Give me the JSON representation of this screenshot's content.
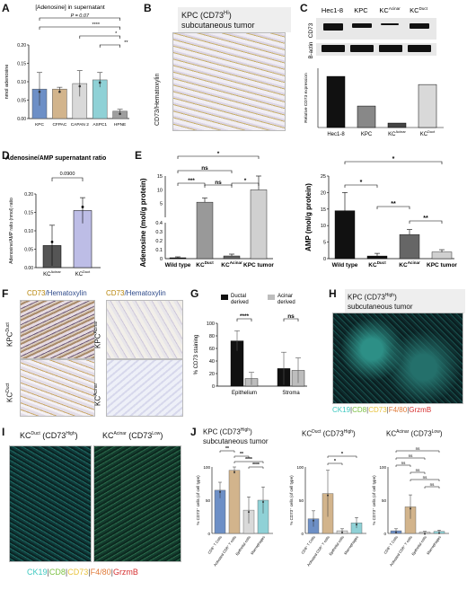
{
  "panels": {
    "A": {
      "label": "A",
      "title": "[Adenosine] in supernatant",
      "ylabel": "nmol adenosine",
      "pvalue": "P = 0.07",
      "sig": [
        "****",
        "*",
        "**"
      ],
      "ticks": [
        "0.00",
        "0.05",
        "0.10",
        "0.15",
        "0.20"
      ]
    },
    "B": {
      "label": "B",
      "title_main": "KPC (CD73",
      "title_sup": "Hi",
      ")": ")",
      "title_line2": "subcutaneous tumor",
      "side": "CD73/Hematoxylin"
    },
    "C": {
      "label": "C",
      "lanes": [
        "Hec1-8",
        "KPC",
        "KC",
        "KC"
      ],
      "lane_sup": [
        "",
        "",
        "Acinar",
        "Duct"
      ],
      "row1": "CD73",
      "row2": "B-actin",
      "ylabel": "Relative CD73 expression"
    },
    "D": {
      "label": "D",
      "title": "Adenosine/AMP supernatant ratio",
      "ylabel": "Adenosine/AMP ratio (nmol) ratio",
      "pvalue": "0.0900",
      "ticks": [
        "0.00",
        "0.05",
        "0.10",
        "0.15",
        "0.20"
      ],
      "cats": [
        "KC",
        "KC"
      ],
      "cat_sup": [
        "Acinar",
        "Duct"
      ]
    },
    "E": {
      "label": "E",
      "ylabel_left": "Adenosine (mol/g protein)",
      "ylabel_right": "AMP (mol/g protein)",
      "cats": [
        "Wild type",
        "KC",
        "KC",
        "KPC tumor"
      ],
      "cat_sup": [
        "",
        "Duct",
        "Acinar",
        ""
      ],
      "left_ticks": [
        "0",
        "0.1",
        "0.2",
        "0.3",
        "0.4",
        "5",
        "10",
        "15"
      ],
      "right_ticks": [
        "0",
        "5",
        "10",
        "15",
        "20",
        "25"
      ],
      "left_sig": [
        "*",
        "ns",
        "***",
        "ns",
        "*"
      ],
      "right_sig": [
        "*",
        "*",
        "**",
        "**"
      ]
    },
    "F": {
      "label": "F",
      "title_left_a": "CD73",
      "title_left_b": "/Hematoxylin",
      "title_right_a": "CD73",
      "title_right_b": "/Hematoxylin",
      "rows": [
        "KPC",
        "KC",
        "KPC",
        "KC"
      ],
      "row_sup": [
        "Duct",
        "Duct",
        "Acinar",
        "Acinar"
      ]
    },
    "G": {
      "label": "G",
      "ylabel": "% CD73 staining",
      "legend": [
        "Ductal derived",
        "Acinar derived"
      ],
      "cats": [
        "Epithelium",
        "Stroma"
      ],
      "ticks": [
        "0",
        "20",
        "40",
        "60",
        "80",
        "100"
      ],
      "sig": [
        "****",
        "ns"
      ]
    },
    "H": {
      "label": "H",
      "title_a": "KPC (CD73",
      "title_sup": "High",
      ")": ")",
      "title_b": "subcutaneous tumor",
      "legend": [
        {
          "t": "CK19",
          "c": "#3ec9c0"
        },
        {
          "t": "CD8",
          "c": "#7cc142"
        },
        {
          "t": "CD73",
          "c": "#e8c23a"
        },
        {
          "t": "F4/80",
          "c": "#e07b39"
        },
        {
          "t": "GrzmB",
          "c": "#d62f2f"
        }
      ]
    },
    "I": {
      "label": "I",
      "left_a": "KC",
      "left_sup": "Duct",
      "left_b": " (CD73",
      "left_sup2": "High",
      "left_c": ")",
      "right_a": "KC",
      "right_sup": "Acinar",
      "right_b": " (CD73",
      "right_sup2": "Low",
      "right_c": ")",
      "legend": [
        {
          "t": "CK19",
          "c": "#3ec9c0"
        },
        {
          "t": "CD8",
          "c": "#7cc142"
        },
        {
          "t": "CD73",
          "c": "#e8c23a"
        },
        {
          "t": "F4/80",
          "c": "#e07b39"
        },
        {
          "t": "GrzmB",
          "c": "#d62f2f"
        }
      ]
    },
    "J": {
      "label": "J",
      "t1a": "KPC (CD73",
      "t1sup": "High",
      "t1b": ")",
      "t1c": "subcutaneous tumor",
      "t2a": "KC",
      "t2sup": "Duct",
      "t2b": " (CD73",
      "t2sup2": "High",
      "t2c": ")",
      "t3a": "KC",
      "t3sup": "Acinar",
      "t3b": " (CD73",
      "t3sup2": "Low",
      "t3c": ")",
      "ylabel1": "% CD73⁺ cells (of cell type)",
      "ylabel2": "% CD73⁺ cells (of cell type)",
      "ylabel3": "% CD73⁺ cells (of cell type)",
      "cats": [
        "CD8⁺ T Cells",
        "Activated CD8⁺ T cells",
        "Epithelial cells",
        "Macrophages"
      ],
      "sig1": [
        "**",
        "**",
        "****",
        "****"
      ],
      "sig2": [
        "*",
        "*"
      ],
      "sig3": [
        "ns",
        "ns",
        "ns",
        "ns",
        "ns",
        "ns"
      ]
    }
  },
  "chart_data": [
    {
      "id": "A",
      "type": "bar",
      "categories": [
        "KPC",
        "CFPAC",
        "CAPAN 2",
        "ASPC1",
        "HPNE"
      ],
      "values": [
        0.08,
        0.08,
        0.095,
        0.105,
        0.02
      ],
      "errors": [
        0.045,
        0.005,
        0.035,
        0.02,
        0.005
      ],
      "ylim": [
        0,
        0.2
      ],
      "colors": [
        "#6d8fc6",
        "#d2b48c",
        "#d9d9d9",
        "#8fd1d6",
        "#9e9e9e"
      ],
      "ylabel": "nmol adenosine",
      "title": "[Adenosine] in supernatant"
    },
    {
      "id": "C",
      "type": "bar",
      "categories": [
        "Hec1-8",
        "KPC",
        "KCAcinar",
        "KCDuct"
      ],
      "values": [
        0.69,
        0.29,
        0.06,
        0.58
      ],
      "ylim": [
        0,
        0.8
      ],
      "ylabel": "Relative CD73 expression"
    },
    {
      "id": "D",
      "type": "bar",
      "categories": [
        "KCAcinar",
        "KCDuct"
      ],
      "values": [
        0.06,
        0.155
      ],
      "errors": [
        0.055,
        0.035
      ],
      "ylim": [
        0,
        0.2
      ],
      "ylabel": "Adenosine/AMP ratio (nmol) ratio",
      "title": "Adenosine/AMP supernatant ratio"
    },
    {
      "id": "E-left",
      "type": "bar",
      "categories": [
        "Wild type",
        "KCDuct",
        "KCAcinar",
        "KPC tumor"
      ],
      "values": [
        0.01,
        5.5,
        0.03,
        10.0
      ],
      "errors": [
        0.01,
        1.5,
        0.02,
        5.0
      ],
      "ylabel": "Adenosine (mol/g protein)"
    },
    {
      "id": "E-right",
      "type": "bar",
      "categories": [
        "Wild type",
        "KCDuct",
        "KCAcinar",
        "KPC tumor"
      ],
      "values": [
        14.5,
        0.8,
        7.3,
        2.0
      ],
      "errors": [
        5.5,
        0.8,
        1.5,
        0.7
      ],
      "ylim": [
        0,
        25
      ],
      "ylabel": "AMP (mol/g protein)"
    },
    {
      "id": "G",
      "type": "bar",
      "categories": [
        "Epithelium",
        "Stroma"
      ],
      "series": [
        {
          "name": "Ductal derived",
          "values": [
            72,
            28
          ],
          "errors": [
            16,
            26
          ]
        },
        {
          "name": "Acinar derived",
          "values": [
            12,
            25
          ],
          "errors": [
            10,
            20
          ]
        }
      ],
      "ylim": [
        0,
        100
      ],
      "ylabel": "% CD73 staining"
    },
    {
      "id": "J1",
      "type": "bar",
      "categories": [
        "CD8⁺ T Cells",
        "Activated CD8⁺ T cells",
        "Epithelial cells",
        "Macrophages"
      ],
      "values": [
        65,
        95,
        35,
        50
      ],
      "errors": [
        12,
        5,
        20,
        20
      ],
      "ylim": [
        0,
        100
      ]
    },
    {
      "id": "J2",
      "type": "bar",
      "categories": [
        "CD8⁺ T Cells",
        "Activated CD8⁺ T cells",
        "Epithelial cells",
        "Macrophages"
      ],
      "values": [
        22,
        60,
        4,
        16
      ],
      "errors": [
        12,
        35,
        3,
        8
      ],
      "ylim": [
        0,
        100
      ]
    },
    {
      "id": "J3",
      "type": "bar",
      "categories": [
        "CD8⁺ T Cells",
        "Activated CD8⁺ T cells",
        "Epithelial cells",
        "Macrophages"
      ],
      "values": [
        4,
        40,
        2,
        3
      ],
      "errors": [
        3,
        18,
        1,
        2
      ],
      "ylim": [
        0,
        100
      ]
    }
  ]
}
